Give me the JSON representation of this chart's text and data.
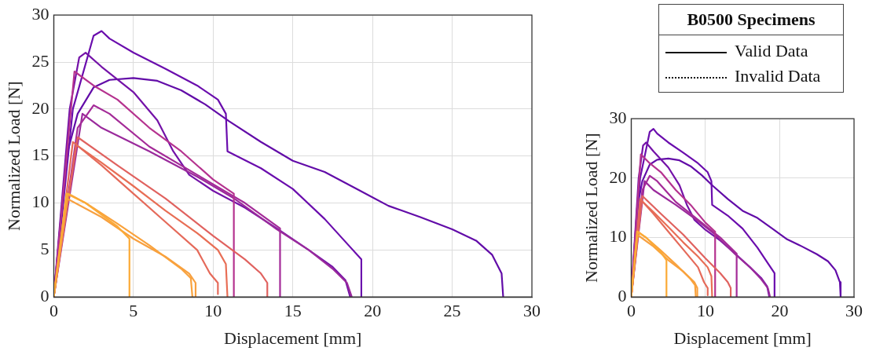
{
  "chart_data": [
    {
      "type": "line",
      "xlabel": "Displacement [mm]",
      "ylabel": "Normalized Load [N]",
      "xlim": [
        0,
        30
      ],
      "xticks": [
        0,
        5,
        10,
        15,
        20,
        25,
        30
      ],
      "ylim": [
        0,
        30
      ],
      "yticks": [
        0,
        5,
        10,
        15,
        20,
        25,
        30
      ],
      "grid": true,
      "legend": false,
      "marker": "none",
      "line_style": "solid",
      "series": [
        {
          "type": "line",
          "color": "#fbaa36",
          "x": [
            0,
            0.8,
            2,
            4,
            4.75,
            4.75
          ],
          "values": [
            0,
            11,
            10,
            7.5,
            6.2,
            0
          ]
        },
        {
          "type": "line",
          "color": "#f9a23c",
          "x": [
            0,
            0.9,
            2,
            4,
            6,
            8,
            8.6,
            8.7
          ],
          "values": [
            0,
            11,
            10,
            7.8,
            5.5,
            3,
            2,
            0
          ]
        },
        {
          "type": "line",
          "color": "#f7a040",
          "x": [
            0,
            0.8,
            3,
            5,
            7,
            8.5,
            8.9,
            8.9
          ],
          "values": [
            0,
            10.5,
            8.5,
            6.2,
            4.3,
            2.5,
            1.5,
            0
          ]
        },
        {
          "type": "line",
          "color": "#e56a5a",
          "x": [
            0,
            1.2,
            3,
            5,
            7,
            9,
            9.8,
            10.3,
            10.3
          ],
          "values": [
            0,
            16.5,
            14,
            11,
            8,
            5,
            2.5,
            1.5,
            0.3
          ]
        },
        {
          "type": "line",
          "color": "#e0625f",
          "x": [
            0,
            1.5,
            4,
            7,
            10,
            12,
            13,
            13.4,
            13.4
          ],
          "values": [
            0,
            17,
            14,
            10.5,
            6.5,
            4,
            2.5,
            1.5,
            0
          ]
        },
        {
          "type": "line",
          "color": "#e86e55",
          "x": [
            0,
            1.4,
            3,
            5,
            7,
            9,
            10.3,
            10.8,
            10.9
          ],
          "values": [
            0,
            16.2,
            14.3,
            11.8,
            9.2,
            6.8,
            5,
            3.5,
            0
          ]
        },
        {
          "type": "line",
          "color": "#b5338f",
          "x": [
            0,
            1.3,
            2.5,
            4,
            6,
            8,
            10,
            11.3,
            11.3
          ],
          "values": [
            0,
            24,
            22.5,
            21,
            18,
            15.5,
            12.5,
            11,
            0
          ]
        },
        {
          "type": "line",
          "color": "#a42b98",
          "x": [
            0,
            1.5,
            2.5,
            3.5,
            6,
            9,
            12,
            14.2,
            14.2
          ],
          "values": [
            0,
            18,
            20.4,
            19.5,
            16,
            13,
            10,
            7.3,
            0
          ]
        },
        {
          "type": "line",
          "color": "#9a2a9c",
          "x": [
            0,
            1.8,
            3,
            6,
            9,
            11.3,
            14,
            16,
            17.5,
            18.4,
            18.7
          ],
          "values": [
            0,
            19.5,
            18,
            15.5,
            12.8,
            10.5,
            7.2,
            5,
            3,
            1.5,
            0
          ]
        },
        {
          "type": "line",
          "color": "#7412a8",
          "x": [
            0,
            1,
            1.6,
            2,
            3,
            5,
            6.5,
            7.5,
            8.5,
            10,
            12,
            14,
            16,
            17.5,
            18.3,
            18.6
          ],
          "values": [
            0,
            20,
            25.5,
            26,
            24.5,
            21.8,
            18.8,
            15.5,
            13,
            11.3,
            9.5,
            7.3,
            5,
            3.2,
            1.8,
            0
          ]
        },
        {
          "type": "line",
          "color": "#6a0dad",
          "x": [
            0,
            1.2,
            2.5,
            3,
            3.5,
            5,
            7,
            9,
            10.3,
            10.8,
            10.9,
            13,
            15,
            17,
            18.5,
            19.3,
            19.3
          ],
          "values": [
            0,
            20,
            27.8,
            28.3,
            27.5,
            26,
            24.3,
            22.5,
            21,
            19.5,
            15.5,
            13.7,
            11.5,
            8.3,
            5.5,
            4,
            0
          ]
        },
        {
          "type": "line",
          "color": "#620ca8",
          "x": [
            0,
            0.8,
            1.5,
            2.5,
            3.5,
            5,
            6.5,
            8,
            9.5,
            11,
            13,
            15,
            17,
            19,
            21,
            23,
            25,
            26.5,
            27.5,
            28.1,
            28.2
          ],
          "values": [
            0,
            15,
            19.5,
            22.3,
            23.1,
            23.3,
            23,
            22,
            20.5,
            18.7,
            16.5,
            14.5,
            13.3,
            11.5,
            9.7,
            8.5,
            7.2,
            6,
            4.5,
            2.5,
            0
          ]
        }
      ]
    },
    {
      "type": "line",
      "xlabel": "Displacement [mm]",
      "ylabel": "Normalized Load [N]",
      "xlim": [
        0,
        30
      ],
      "xticks": [
        0,
        10,
        20,
        30
      ],
      "ylim": [
        0,
        30
      ],
      "yticks": [
        0,
        10,
        20,
        30
      ],
      "grid": true,
      "legend": false,
      "marker": "none",
      "line_style": "solid",
      "series": [
        {
          "type": "line",
          "color": "#fbaa36",
          "x": [
            0,
            0.8,
            2,
            4,
            4.75,
            4.75
          ],
          "values": [
            0,
            11,
            10,
            7.5,
            6.2,
            0
          ]
        },
        {
          "type": "line",
          "color": "#f9a23c",
          "x": [
            0,
            0.9,
            2,
            4,
            6,
            8,
            8.6,
            8.7
          ],
          "values": [
            0,
            11,
            10,
            7.8,
            5.5,
            3,
            2,
            0
          ]
        },
        {
          "type": "line",
          "color": "#f7a040",
          "x": [
            0,
            0.8,
            3,
            5,
            7,
            8.5,
            8.9,
            8.9
          ],
          "values": [
            0,
            10.5,
            8.5,
            6.2,
            4.3,
            2.5,
            1.5,
            0
          ]
        },
        {
          "type": "line",
          "color": "#e56a5a",
          "x": [
            0,
            1.2,
            3,
            5,
            7,
            9,
            9.8,
            10.3,
            10.3
          ],
          "values": [
            0,
            16.5,
            14,
            11,
            8,
            5,
            2.5,
            1.5,
            0.3
          ]
        },
        {
          "type": "line",
          "color": "#e0625f",
          "x": [
            0,
            1.5,
            4,
            7,
            10,
            12,
            13,
            13.4,
            13.4
          ],
          "values": [
            0,
            17,
            14,
            10.5,
            6.5,
            4,
            2.5,
            1.5,
            0
          ]
        },
        {
          "type": "line",
          "color": "#e86e55",
          "x": [
            0,
            1.4,
            3,
            5,
            7,
            9,
            10.3,
            10.8,
            10.9
          ],
          "values": [
            0,
            16.2,
            14.3,
            11.8,
            9.2,
            6.8,
            5,
            3.5,
            0
          ]
        },
        {
          "type": "line",
          "color": "#b5338f",
          "x": [
            0,
            1.3,
            2.5,
            4,
            6,
            8,
            10,
            11.3,
            11.3
          ],
          "values": [
            0,
            24,
            22.5,
            21,
            18,
            15.5,
            12.5,
            11,
            0
          ]
        },
        {
          "type": "line",
          "color": "#a42b98",
          "x": [
            0,
            1.5,
            2.5,
            3.5,
            6,
            9,
            12,
            14.2,
            14.2
          ],
          "values": [
            0,
            18,
            20.4,
            19.5,
            16,
            13,
            10,
            7.3,
            0
          ]
        },
        {
          "type": "line",
          "color": "#9a2a9c",
          "x": [
            0,
            1.8,
            3,
            6,
            9,
            11.3,
            14,
            16,
            17.5,
            18.4,
            18.7
          ],
          "values": [
            0,
            19.5,
            18,
            15.5,
            12.8,
            10.5,
            7.2,
            5,
            3,
            1.5,
            0
          ]
        },
        {
          "type": "line",
          "color": "#7412a8",
          "x": [
            0,
            1,
            1.6,
            2,
            3,
            5,
            6.5,
            7.5,
            8.5,
            10,
            12,
            14,
            16,
            17.5,
            18.3,
            18.6
          ],
          "values": [
            0,
            20,
            25.5,
            26,
            24.5,
            21.8,
            18.8,
            15.5,
            13,
            11.3,
            9.5,
            7.3,
            5,
            3.2,
            1.8,
            0
          ]
        },
        {
          "type": "line",
          "color": "#6a0dad",
          "x": [
            0,
            1.2,
            2.5,
            3,
            3.5,
            5,
            7,
            9,
            10.3,
            10.8,
            10.9,
            13,
            15,
            17,
            18.5,
            19.3,
            19.3
          ],
          "values": [
            0,
            20,
            27.8,
            28.3,
            27.5,
            26,
            24.3,
            22.5,
            21,
            19.5,
            15.5,
            13.7,
            11.5,
            8.3,
            5.5,
            4,
            0
          ]
        },
        {
          "type": "line",
          "color": "#620ca8",
          "x": [
            0,
            0.8,
            1.5,
            2.5,
            3.5,
            5,
            6.5,
            8,
            9.5,
            11,
            13,
            15,
            17,
            19,
            21,
            23,
            25,
            26.5,
            27.5,
            28.1,
            28.2
          ],
          "values": [
            0,
            15,
            19.5,
            22.3,
            23.1,
            23.3,
            23,
            22,
            20.5,
            18.7,
            16.5,
            14.5,
            13.3,
            11.5,
            9.7,
            8.5,
            7.2,
            6,
            4.5,
            2.5,
            0
          ]
        }
      ]
    },
    {
      "type": "other",
      "title": "B0500 Specimens",
      "annotations": [
        "Valid Data",
        "Invalid Data"
      ]
    }
  ]
}
